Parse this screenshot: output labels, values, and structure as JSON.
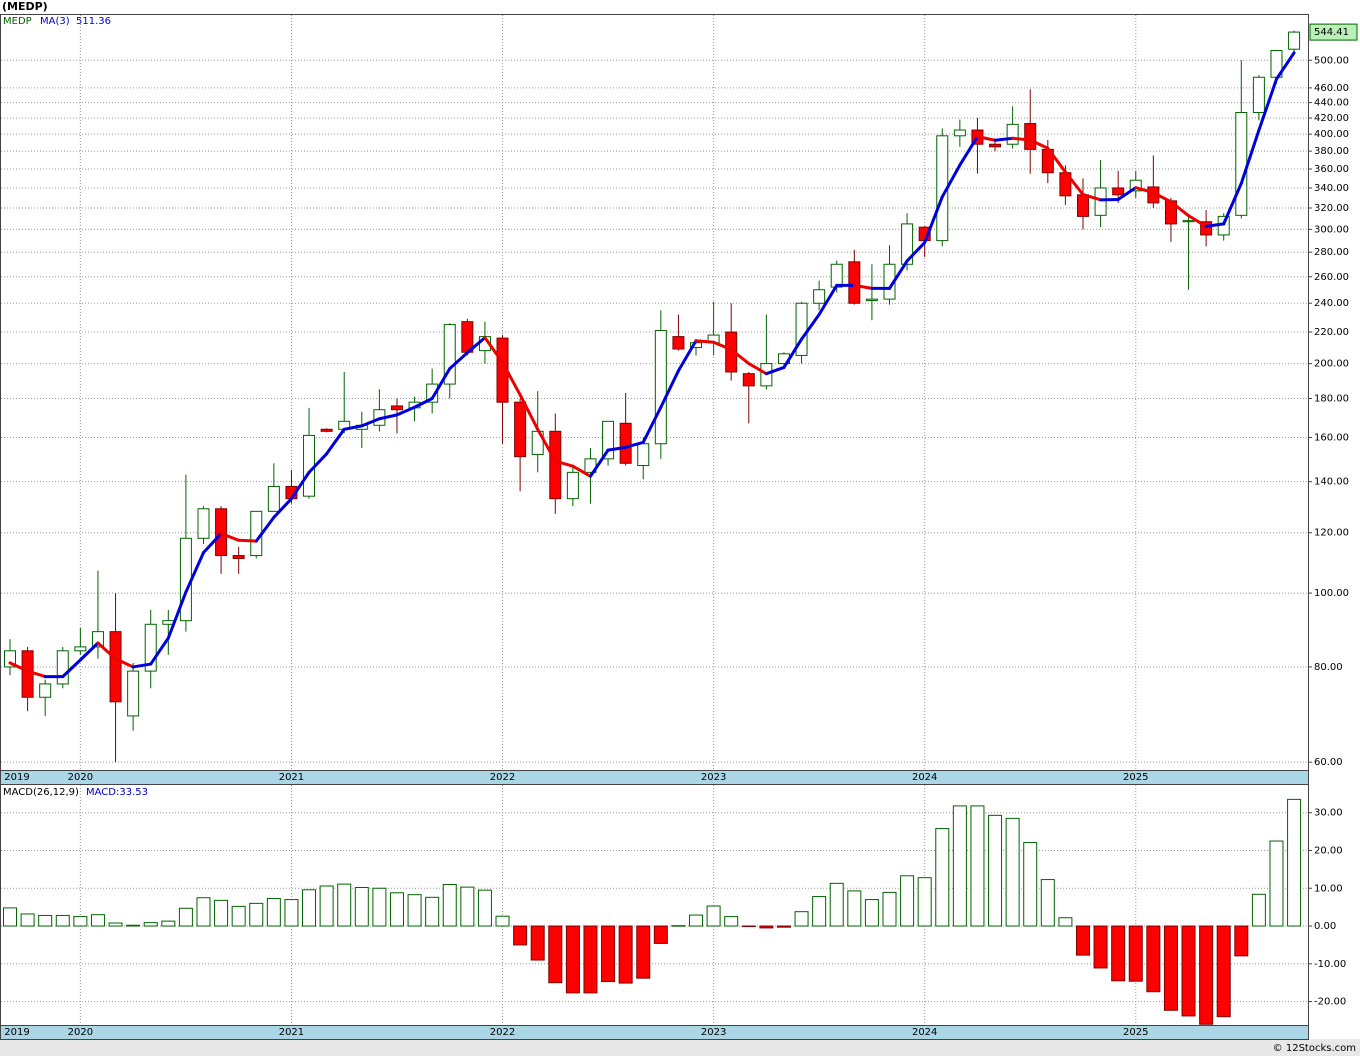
{
  "chart_data": [
    {
      "type": "candlestick",
      "title": "(MEDP)",
      "symbol": "MEDP",
      "log_scale": true,
      "grid": true,
      "categories": [
        "2019",
        null,
        null,
        null,
        "2020",
        null,
        null,
        null,
        null,
        null,
        null,
        null,
        null,
        null,
        null,
        null,
        "2021",
        null,
        null,
        null,
        null,
        null,
        null,
        null,
        null,
        null,
        null,
        null,
        "2022",
        null,
        null,
        null,
        null,
        null,
        null,
        null,
        null,
        null,
        null,
        null,
        "2023",
        null,
        null,
        null,
        null,
        null,
        null,
        null,
        null,
        null,
        null,
        null,
        "2024",
        null,
        null,
        null,
        null,
        null,
        null,
        null,
        null,
        null,
        null,
        null,
        "2025",
        null,
        null,
        null,
        null,
        null,
        null,
        null,
        null,
        null
      ],
      "up_color": "#006400",
      "down_color": "#ff0000",
      "open": [
        80,
        84,
        73,
        76,
        84,
        85,
        89,
        69,
        79,
        91,
        92,
        118,
        129,
        112,
        112,
        128,
        138,
        134,
        164,
        164,
        164,
        166,
        176,
        175,
        178,
        188,
        227,
        208,
        216,
        178,
        152,
        163,
        133,
        144,
        150,
        167,
        147,
        157,
        217,
        210,
        213,
        220,
        194,
        187,
        200,
        205,
        240,
        252,
        272,
        242,
        243,
        270,
        302,
        290,
        398,
        405,
        388,
        388,
        413,
        382,
        356,
        333,
        313,
        340,
        337,
        341,
        327,
        307,
        307,
        295,
        313,
        427,
        475,
        517
      ],
      "high": [
        87,
        85,
        77,
        85,
        90,
        107,
        100,
        81,
        95,
        95,
        143,
        130,
        130,
        115,
        128,
        148,
        145,
        175,
        164.5,
        195,
        173,
        185,
        180,
        181,
        197,
        226,
        229,
        227,
        218,
        180,
        184,
        172,
        147,
        155,
        168,
        183,
        160,
        235,
        232,
        215,
        241,
        240,
        195,
        232,
        207,
        241,
        257,
        273,
        282,
        270,
        286,
        315,
        303,
        407,
        418,
        420,
        392,
        435,
        458,
        393,
        364,
        350,
        370,
        358,
        358,
        375,
        330,
        312,
        318,
        315,
        500,
        478,
        516,
        547
      ],
      "low": [
        78,
        70,
        69,
        75,
        83,
        82,
        60,
        66,
        75,
        83,
        89,
        116,
        106,
        106,
        111,
        128,
        131,
        133,
        162.5,
        162,
        155,
        163,
        162,
        168,
        172,
        180,
        205,
        200,
        157,
        136,
        144,
        127,
        130,
        131,
        147,
        147,
        141,
        150,
        208,
        205,
        205,
        190,
        167,
        185,
        199,
        200,
        235,
        248,
        239,
        228,
        239,
        265,
        276,
        285,
        385,
        355,
        380,
        383,
        355,
        345,
        323,
        300,
        302,
        325,
        330,
        320,
        289,
        250,
        285,
        290,
        310,
        417,
        466,
        512
      ],
      "close": [
        84,
        73,
        76,
        84,
        85,
        89,
        72,
        79,
        91,
        92,
        118,
        129,
        112,
        111,
        128,
        138,
        133,
        161,
        163,
        168,
        166,
        174,
        174,
        178,
        188,
        225,
        207,
        217,
        178,
        151,
        163,
        133,
        144,
        150,
        168,
        148,
        157,
        221,
        209,
        213,
        218,
        195,
        187,
        200,
        206,
        240,
        250,
        270,
        240,
        243,
        270,
        305,
        290,
        398,
        405,
        388,
        385,
        412,
        382,
        356,
        332,
        312,
        340,
        333,
        348,
        325,
        305,
        308,
        295,
        312,
        427,
        475,
        515,
        544.41
      ],
      "ma": {
        "name": "MA(3)",
        "up_color": "#0000dd",
        "down_color": "#ee0000",
        "values": [
          81,
          79,
          77.7,
          77.7,
          81.7,
          86,
          82,
          80,
          80.7,
          87.3,
          100.3,
          113,
          119.7,
          117.3,
          117,
          125.7,
          133,
          144,
          152.3,
          164,
          165.7,
          169.3,
          171.3,
          175.3,
          180,
          197,
          206.7,
          216.3,
          200.7,
          182,
          164,
          149,
          146.7,
          142.3,
          154,
          155.3,
          157.7,
          175.3,
          195.7,
          214.3,
          213.3,
          208.7,
          200,
          194,
          197.7,
          215.3,
          232,
          253.3,
          253.3,
          251,
          251,
          272.7,
          288.3,
          331,
          364.3,
          397,
          392.7,
          395,
          393,
          383.3,
          356.7,
          333.3,
          328,
          328.3,
          340.3,
          335.3,
          326,
          312.7,
          302.7,
          305,
          344.7,
          404.7,
          472.3,
          511.36
        ]
      },
      "ylim": [
        58.6,
        575
      ],
      "yticks": [
        {
          "value": 60,
          "label": "60.00"
        },
        {
          "value": 80,
          "label": "80.00"
        },
        {
          "value": 100,
          "label": "100.00"
        },
        {
          "value": 120,
          "label": "120.00"
        },
        {
          "value": 140,
          "label": "140.00"
        },
        {
          "value": 160,
          "label": "160.00"
        },
        {
          "value": 180,
          "label": "180.00"
        },
        {
          "value": 200,
          "label": "200.00"
        },
        {
          "value": 220,
          "label": "220.00"
        },
        {
          "value": 240,
          "label": "240.00"
        },
        {
          "value": 260,
          "label": "260.00"
        },
        {
          "value": 280,
          "label": "280.00"
        },
        {
          "value": 300,
          "label": "300.00"
        },
        {
          "value": 320,
          "label": "320.00"
        },
        {
          "value": 340,
          "label": "340.00"
        },
        {
          "value": 360,
          "label": "360.00"
        },
        {
          "value": 380,
          "label": "380.00"
        },
        {
          "value": 400,
          "label": "400.00"
        },
        {
          "value": 420,
          "label": "420.00"
        },
        {
          "value": 440,
          "label": "440.00"
        },
        {
          "value": 460,
          "label": "460.00"
        },
        {
          "value": 500,
          "label": "500.00"
        }
      ]
    },
    {
      "type": "bar",
      "legend": [
        "MACD(26,12,9)",
        "MACD:33.53"
      ],
      "grid": true,
      "up_color": "#006400",
      "down_color": "#ff0000",
      "categories": [
        "2019",
        null,
        null,
        null,
        "2020",
        null,
        null,
        null,
        null,
        null,
        null,
        null,
        null,
        null,
        null,
        null,
        "2021",
        null,
        null,
        null,
        null,
        null,
        null,
        null,
        null,
        null,
        null,
        null,
        "2022",
        null,
        null,
        null,
        null,
        null,
        null,
        null,
        null,
        null,
        null,
        null,
        "2023",
        null,
        null,
        null,
        null,
        null,
        null,
        null,
        null,
        null,
        null,
        null,
        "2024",
        null,
        null,
        null,
        null,
        null,
        null,
        null,
        null,
        null,
        null,
        null,
        "2025",
        null,
        null,
        null,
        null,
        null,
        null,
        null,
        null,
        null
      ],
      "values": [
        4.8,
        3.2,
        2.8,
        2.8,
        2.5,
        3.0,
        0.8,
        0.2,
        0.9,
        1.3,
        4.7,
        7.5,
        6.8,
        5.2,
        6.0,
        7.3,
        7.0,
        9.6,
        10.6,
        11.1,
        10.2,
        10.0,
        8.8,
        8.3,
        7.6,
        11.0,
        10.3,
        9.5,
        2.6,
        -5.0,
        -9.0,
        -15.0,
        -17.7,
        -17.7,
        -14.7,
        -15.1,
        -13.8,
        -4.6,
        0.1,
        2.9,
        5.3,
        2.5,
        -0.1,
        -0.5,
        -0.3,
        3.8,
        7.8,
        11.3,
        9.3,
        7.0,
        8.9,
        13.3,
        12.8,
        25.8,
        31.8,
        31.8,
        29.3,
        28.5,
        22.1,
        12.3,
        2.2,
        -7.7,
        -11.1,
        -14.5,
        -14.6,
        -17.4,
        -22.3,
        -23.8,
        -26.0,
        -24.0,
        -7.9,
        8.4,
        22.5,
        33.53
      ],
      "ylim": [
        -26.2,
        37.6
      ],
      "yticks": [
        {
          "value": -20,
          "label": "-20.00"
        },
        {
          "value": -10,
          "label": "-10.00"
        },
        {
          "value": 0,
          "label": "0.00"
        },
        {
          "value": 10,
          "label": "10.00"
        },
        {
          "value": 20,
          "label": "20.00"
        },
        {
          "value": 30,
          "label": "30.00"
        }
      ]
    }
  ],
  "footer": "© 12Stocks.com"
}
